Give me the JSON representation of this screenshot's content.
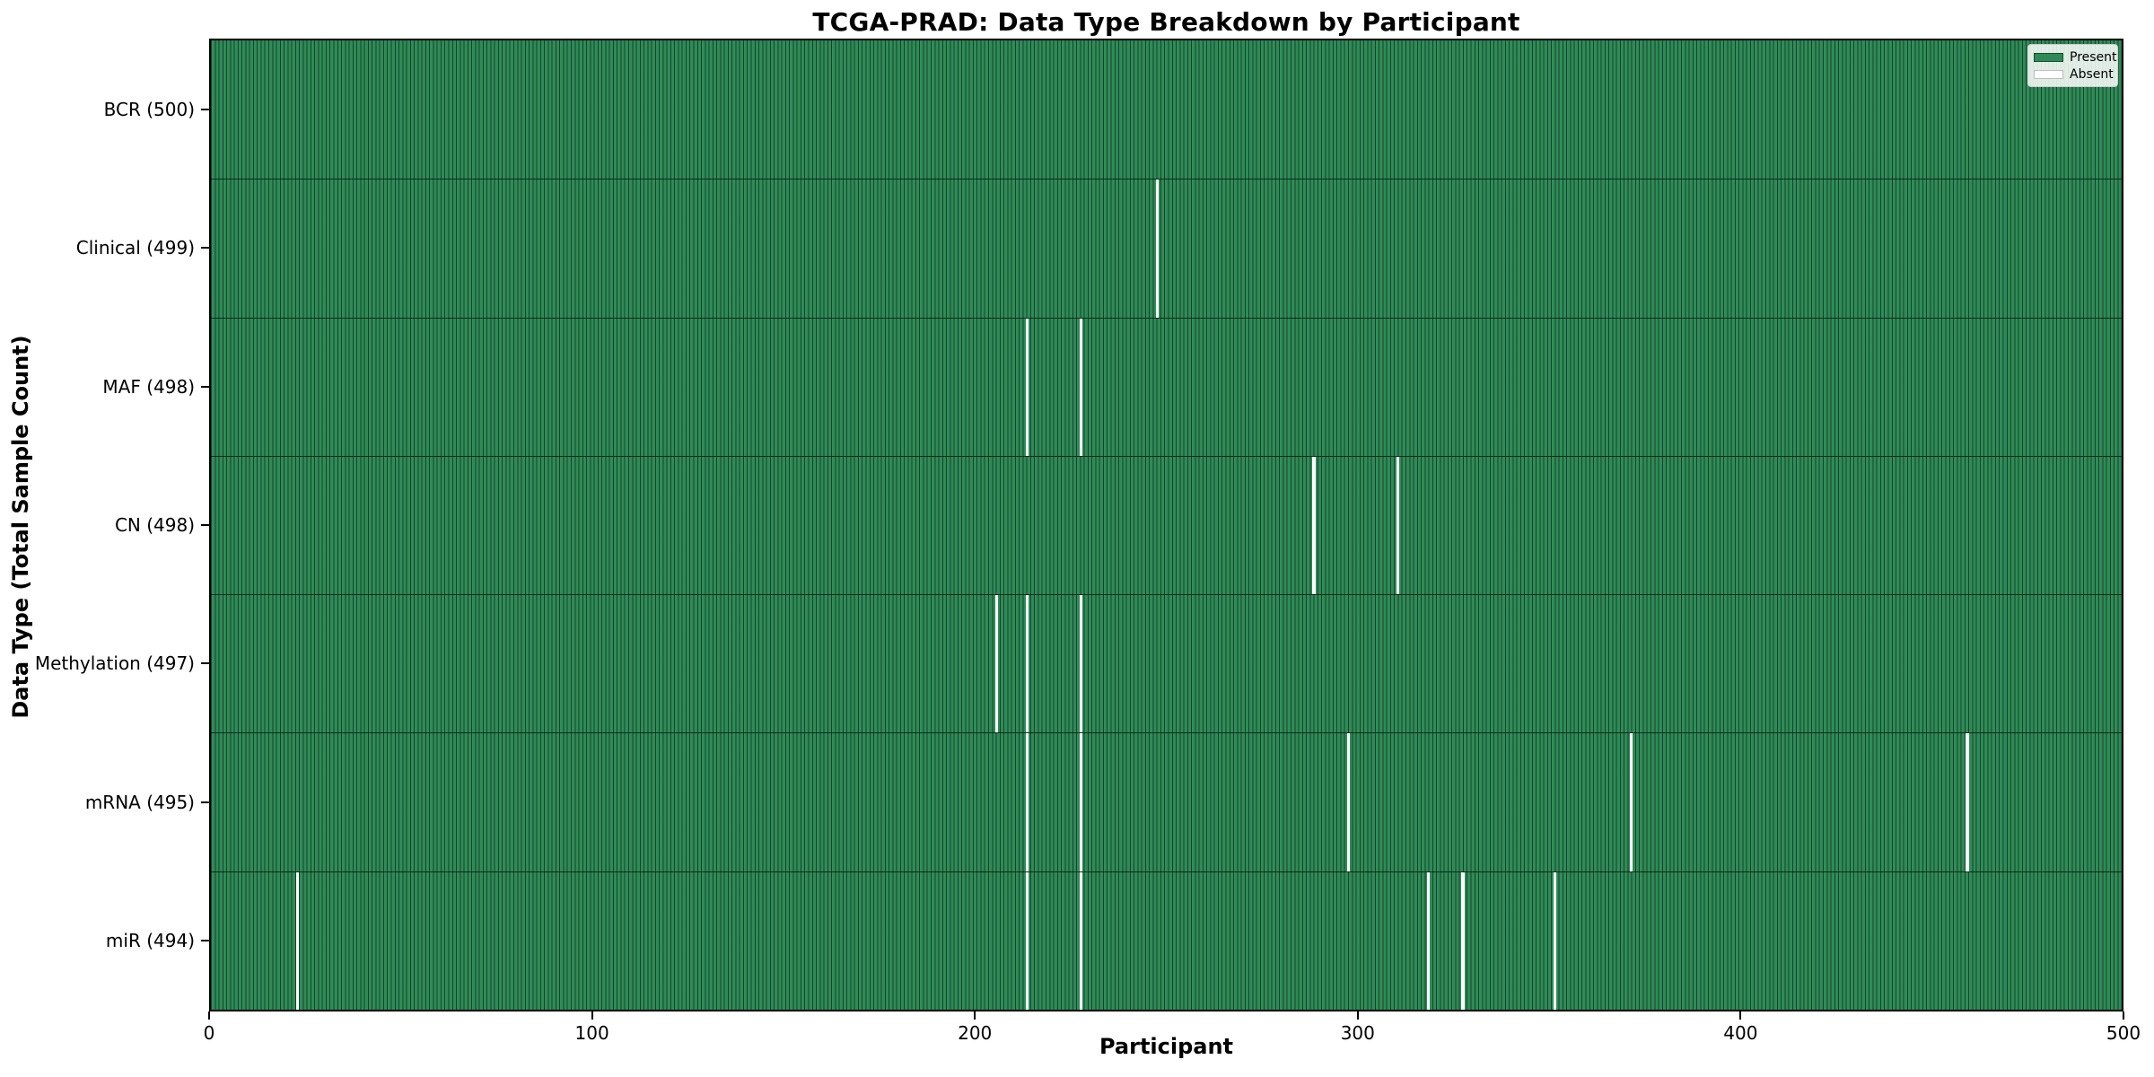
{
  "chart_data": {
    "type": "heatmap",
    "title": "TCGA-PRAD: Data Type Breakdown by Participant",
    "xlabel": "Participant",
    "ylabel": "Data Type (Total Sample Count)",
    "xlim": [
      0,
      500
    ],
    "x_ticks": [
      0,
      100,
      200,
      300,
      400,
      500
    ],
    "n_participants": 500,
    "grid": false,
    "legend_position": "upper right",
    "colors": {
      "present": "#2e8b57",
      "absent": "#ffffff",
      "cell_edge": "#1d5c3c",
      "spine": "#000000"
    },
    "legend": [
      {
        "label": "Present",
        "color": "#2e8b57"
      },
      {
        "label": "Absent",
        "color": "#ffffff"
      }
    ],
    "rows": [
      {
        "label": "BCR (500)",
        "name": "BCR",
        "total": 500,
        "absent_participants": []
      },
      {
        "label": "Clinical (499)",
        "name": "Clinical",
        "total": 499,
        "absent_participants": [
          247
        ]
      },
      {
        "label": "MAF (498)",
        "name": "MAF",
        "total": 498,
        "absent_participants": [
          213,
          227
        ]
      },
      {
        "label": "CN (498)",
        "name": "CN",
        "total": 498,
        "absent_participants": [
          288,
          310
        ]
      },
      {
        "label": "Methylation (497)",
        "name": "Methylation",
        "total": 497,
        "absent_participants": [
          205,
          213,
          227
        ]
      },
      {
        "label": "mRNA (495)",
        "name": "mRNA",
        "total": 495,
        "absent_participants": [
          213,
          227,
          297,
          371,
          459
        ]
      },
      {
        "label": "miR (494)",
        "name": "miR",
        "total": 494,
        "absent_participants": [
          22,
          213,
          227,
          318,
          327,
          351
        ]
      }
    ]
  }
}
